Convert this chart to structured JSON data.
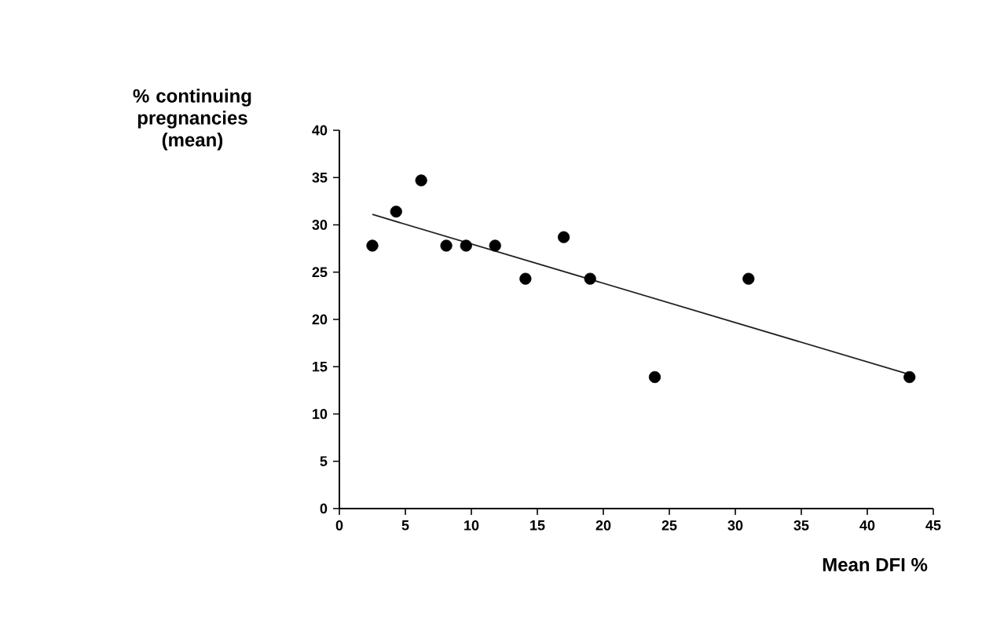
{
  "chart_data": {
    "type": "scatter",
    "xlabel": "Mean DFI %",
    "ylabel": "% continuing pregnancies (mean)",
    "xlim": [
      0,
      45
    ],
    "ylim": [
      0,
      40
    ],
    "xticks": [
      0,
      5,
      10,
      15,
      20,
      25,
      30,
      35,
      40,
      45
    ],
    "yticks": [
      0,
      5,
      10,
      15,
      20,
      25,
      30,
      35,
      40
    ],
    "grid": false,
    "series": [
      {
        "marker": "circle",
        "color": "#000000",
        "x": [
          2.5,
          4.3,
          6.2,
          8.1,
          9.6,
          11.8,
          14.1,
          17.0,
          19.0,
          23.9,
          31.0,
          43.2
        ],
        "values": [
          27.8,
          31.4,
          34.7,
          27.8,
          27.8,
          27.8,
          24.3,
          28.7,
          24.3,
          13.9,
          24.3,
          13.9
        ]
      },
      {
        "type": "line",
        "marker": "none",
        "color": "#222222",
        "x": [
          2.5,
          42.9
        ],
        "values": [
          31.1,
          14.3
        ]
      }
    ]
  }
}
